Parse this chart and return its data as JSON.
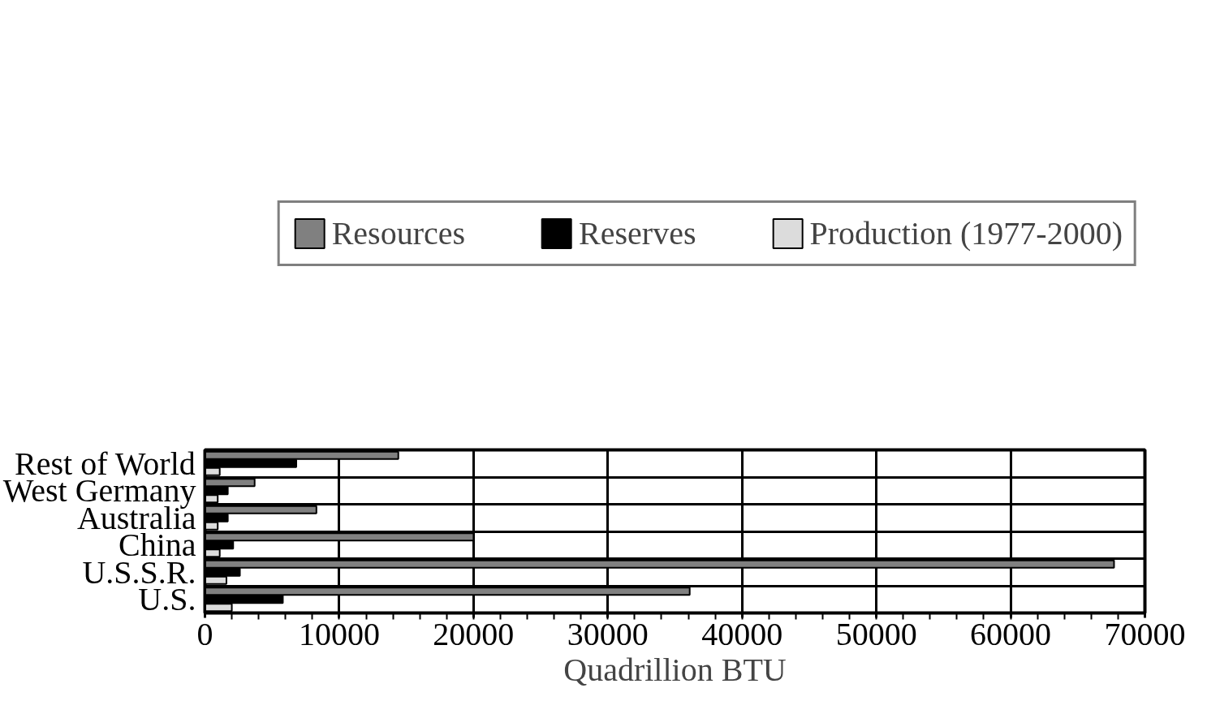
{
  "chart_data": {
    "type": "bar",
    "orientation": "horizontal",
    "xlabel": "Quadrillion BTU",
    "categories": [
      "Rest of World",
      "West Germany",
      "Australia",
      "China",
      "U.S.S.R.",
      "U.S."
    ],
    "series": [
      {
        "name": "Resources",
        "color": "#808080",
        "values": [
          14400,
          3700,
          8300,
          20000,
          67700,
          36100
        ]
      },
      {
        "name": "Reserves",
        "color": "#000000",
        "values": [
          6800,
          1700,
          1700,
          2100,
          2600,
          5800
        ]
      },
      {
        "name": "Production (1977-2000)",
        "color": "#dcdcdc",
        "values": [
          1100,
          950,
          950,
          1100,
          1600,
          2000
        ]
      }
    ],
    "xlim": [
      0,
      70000
    ],
    "xticks": [
      0,
      10000,
      20000,
      30000,
      40000,
      50000,
      60000,
      70000
    ],
    "grid": true,
    "legend": "top"
  }
}
